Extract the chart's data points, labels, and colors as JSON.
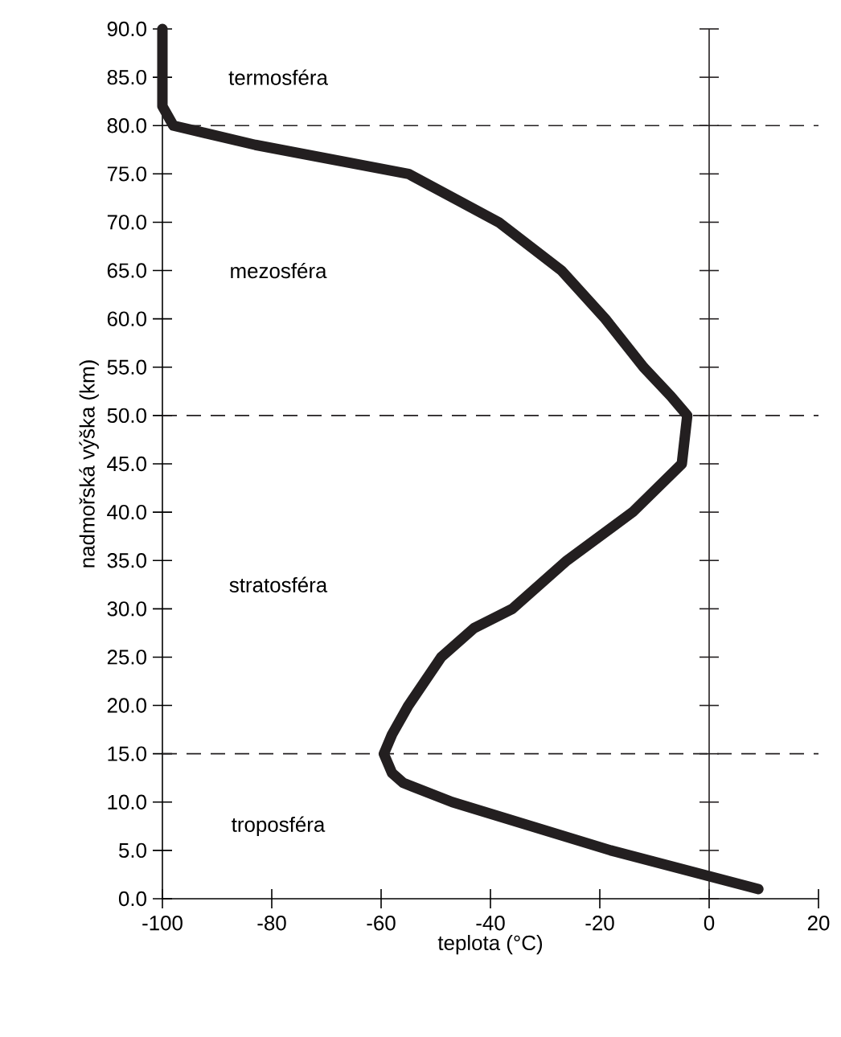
{
  "chart_data": {
    "type": "line",
    "xlabel": "teplota (°C)",
    "ylabel": "nadmořská výška (km)",
    "xlim": [
      -100,
      20
    ],
    "ylim": [
      0,
      90
    ],
    "xticks": [
      -100,
      -80,
      -60,
      -40,
      -20,
      0,
      20
    ],
    "yticks": [
      {
        "value": 0,
        "label": "0.0"
      },
      {
        "value": 5,
        "label": "5.0"
      },
      {
        "value": 10,
        "label": "10.0"
      },
      {
        "value": 15,
        "label": "15.0"
      },
      {
        "value": 20,
        "label": "20.0"
      },
      {
        "value": 25,
        "label": "25.0"
      },
      {
        "value": 30,
        "label": "30.0"
      },
      {
        "value": 35,
        "label": "35.0"
      },
      {
        "value": 40,
        "label": "40.0"
      },
      {
        "value": 45,
        "label": "45.0"
      },
      {
        "value": 50,
        "label": "50.0"
      },
      {
        "value": 55,
        "label": "55.0"
      },
      {
        "value": 60,
        "label": "60.0"
      },
      {
        "value": 65,
        "label": "65.0"
      },
      {
        "value": 70,
        "label": "70.0"
      },
      {
        "value": 75,
        "label": "75.0"
      },
      {
        "value": 80,
        "label": "80.0"
      },
      {
        "value": 85,
        "label": "85.0"
      },
      {
        "value": 90,
        "label": "90.0"
      }
    ],
    "series": [
      {
        "color": "#231f20",
        "line_style": "solid",
        "x": [
          9,
          -18,
          -47,
          -56,
          -58,
          -59.5,
          -58,
          -55,
          -49,
          -43,
          -36,
          -26,
          -14,
          -5,
          -4,
          -7,
          -12,
          -19,
          -27,
          -38.5,
          -55,
          -83,
          -98,
          -100,
          -100
        ],
        "values": [
          1,
          5,
          10,
          12,
          13,
          15,
          17,
          20,
          25,
          28,
          30,
          35,
          40,
          45,
          50,
          52,
          55,
          60,
          65,
          70,
          75,
          78,
          80,
          82,
          90
        ]
      }
    ],
    "ref_lines": [
      {
        "axis": "y",
        "value": 15,
        "line_style": "dashed",
        "color": "#231f20"
      },
      {
        "axis": "y",
        "value": 50,
        "line_style": "dashed",
        "color": "#231f20"
      },
      {
        "axis": "y",
        "value": 80,
        "line_style": "dashed",
        "color": "#231f20"
      },
      {
        "axis": "x",
        "value": 0,
        "line_style": "solid",
        "color": "#231f20"
      }
    ],
    "annotations": [
      "termosféra",
      "mezosféra",
      "stratosféra",
      "troposféra"
    ],
    "grid": false,
    "marker": "none"
  }
}
